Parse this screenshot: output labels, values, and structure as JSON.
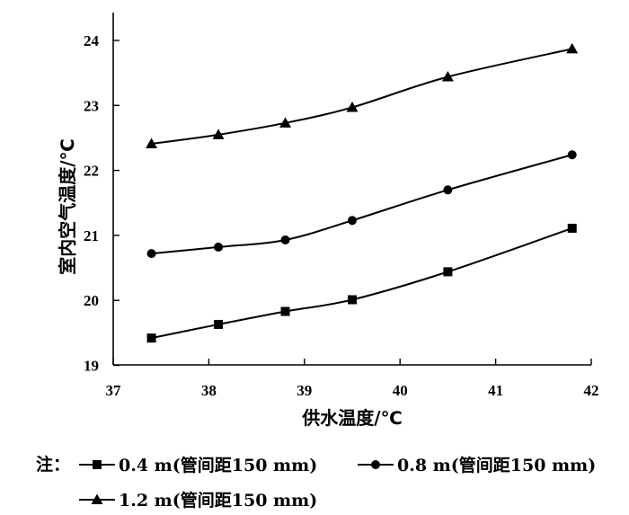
{
  "chart_data": {
    "type": "line",
    "xlabel": "供水温度/℃",
    "ylabel": "室内空气温度/℃",
    "xlim": [
      37,
      42
    ],
    "ylim": [
      19,
      24.5
    ],
    "xticks": [
      37,
      38,
      39,
      40,
      41,
      42
    ],
    "yticks": [
      19,
      20,
      21,
      22,
      23,
      24
    ],
    "x": [
      37.4,
      38.1,
      38.8,
      39.5,
      40.5,
      41.8
    ],
    "series": [
      {
        "name": "0.4 m(管间距150 mm)",
        "marker": "square",
        "values": [
          19.42,
          19.63,
          19.83,
          20.01,
          20.44,
          21.11
        ]
      },
      {
        "name": "0.8 m(管间距150 mm)",
        "marker": "circle",
        "values": [
          20.72,
          20.82,
          20.93,
          21.23,
          21.7,
          22.24
        ]
      },
      {
        "name": "1.2 m(管间距150 mm)",
        "marker": "triangle",
        "values": [
          22.41,
          22.55,
          22.73,
          22.97,
          23.44,
          23.87
        ]
      }
    ],
    "legend": {
      "prefix": "注：",
      "placement": "bottom"
    },
    "grid": false
  }
}
